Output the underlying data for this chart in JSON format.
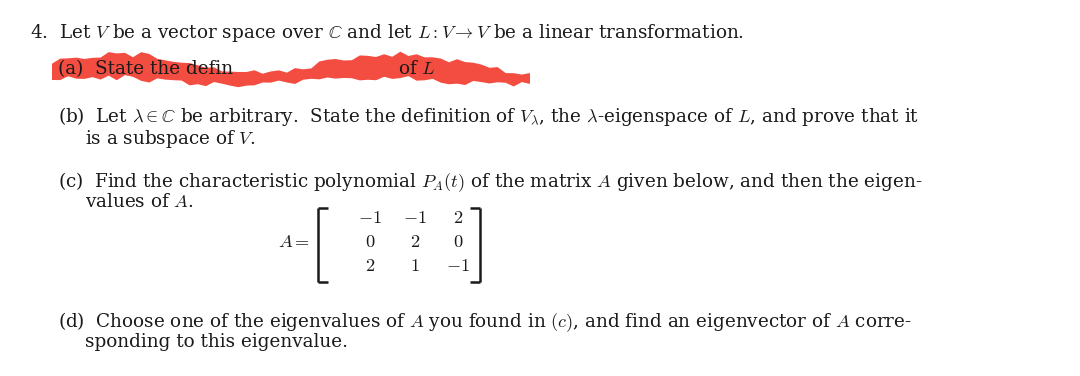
{
  "bg_color": "#ffffff",
  "text_color": "#1a1a1a",
  "highlight_color": "#ee1100",
  "highlight_alpha": 0.75,
  "figsize": [
    10.8,
    3.76
  ],
  "dpi": 100,
  "main_title": "4.  Let $V$ be a vector space over $\\mathbb{C}$ and let $L: V \\to V$ be a linear transformation.",
  "item_a_prefix": "(a)",
  "item_a_text": "State the defin",
  "item_a_suffix": "of $L$",
  "item_b_line1": "(b)  Let $\\lambda \\in \\mathbb{C}$ be arbitrary.  State the definition of $V_\\lambda$, the $\\lambda$-eigenspace of $L$, and prove that it",
  "item_b_line2": "is a subspace of $V$.",
  "item_c_line1": "(c)  Find the characteristic polynomial $P_A(t)$ of the matrix $A$ given below, and then the eigen-",
  "item_c_line2": "values of $A$.",
  "matrix_rows": [
    [
      "-1",
      "-1",
      "2"
    ],
    [
      "0",
      "2",
      "0"
    ],
    [
      "2",
      "1",
      "-1"
    ]
  ],
  "item_d_line1": "(d)  Choose one of the eigenvalues of $A$ you found in $(c)$, and find an eigenvector of $A$ corre-",
  "item_d_line2": "sponding to this eigenvalue."
}
